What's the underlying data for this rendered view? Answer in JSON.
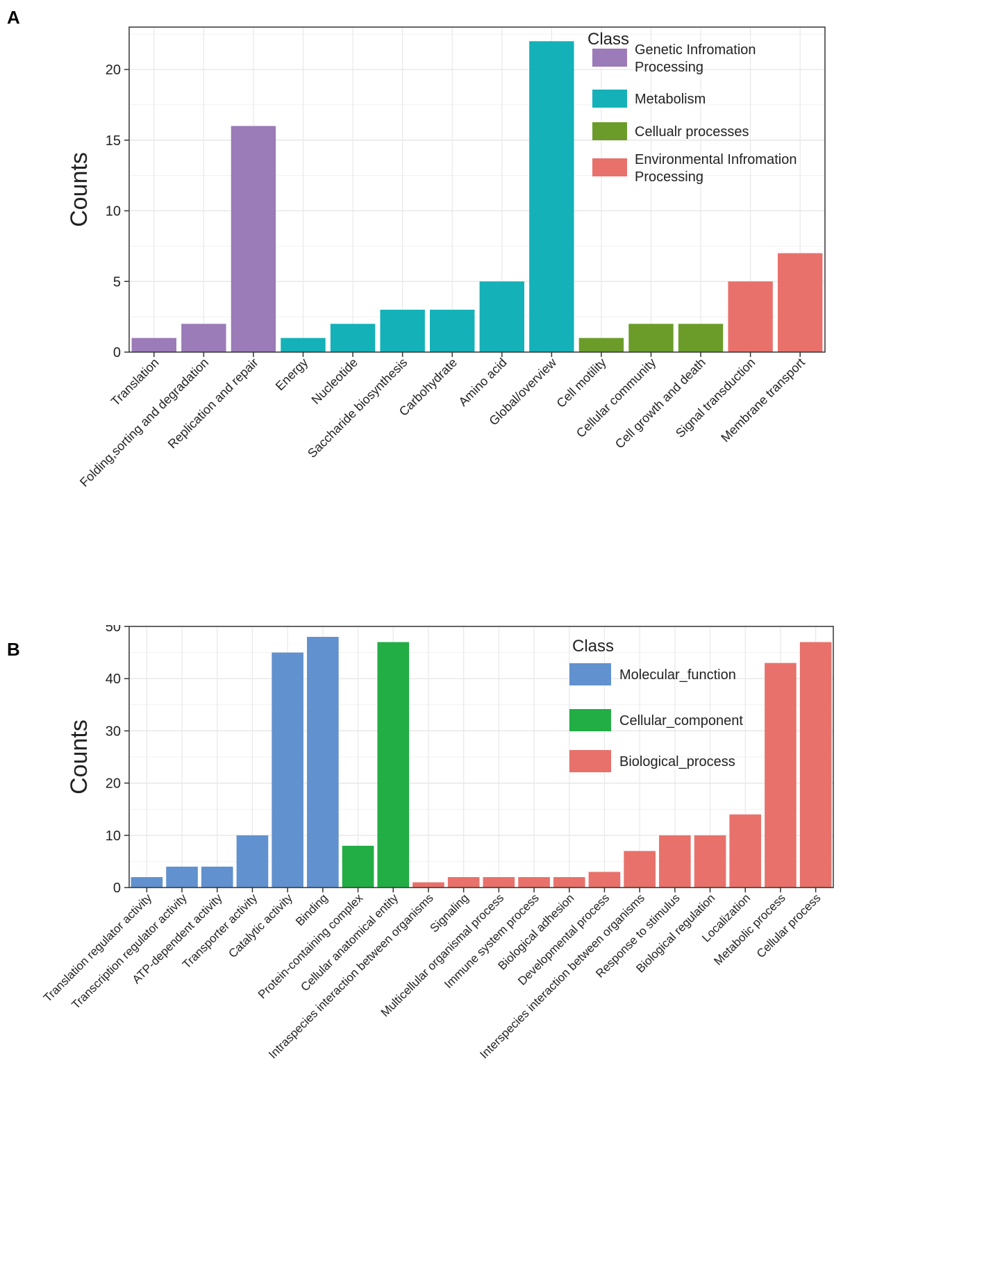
{
  "panels": [
    {
      "label": "A"
    },
    {
      "label": "B"
    }
  ],
  "chart_data": [
    {
      "type": "bar",
      "panel": "A",
      "ylabel": "Counts",
      "xlabel": "",
      "ylim": [
        0,
        23
      ],
      "yticks": [
        0,
        5,
        10,
        15,
        20
      ],
      "grid": true,
      "legend_position": "top-right",
      "legend_title": "Class",
      "classes": [
        {
          "name": "Genetic Infromation Processing",
          "lines": [
            "Genetic Infromation",
            "Processing"
          ],
          "color": "#9B7BB8"
        },
        {
          "name": "Metabolism",
          "lines": [
            "Metabolism"
          ],
          "color": "#14B1B8"
        },
        {
          "name": "Cellualr processes",
          "lines": [
            "Cellualr processes"
          ],
          "color": "#6B9C2A"
        },
        {
          "name": "Environmental Infromation Processing",
          "lines": [
            "Environmental Infromation",
            "Processing"
          ],
          "color": "#E8716B"
        }
      ],
      "categories": [
        "Translation",
        "Folding,sorting and degradation",
        "Replication and repair",
        "Energy",
        "Nucleotide",
        "Saccharide biosynthesis",
        "Carbohydrate",
        "Amino acid",
        "Global/overview",
        "Cell motility",
        "Cellular community",
        "Cell growth and death",
        "Signal transduction",
        "Membrane transport"
      ],
      "values": [
        1,
        2,
        16,
        1,
        2,
        3,
        3,
        5,
        22,
        1,
        2,
        2,
        5,
        7
      ],
      "class_index": [
        0,
        0,
        0,
        1,
        1,
        1,
        1,
        1,
        1,
        2,
        2,
        2,
        3,
        3
      ]
    },
    {
      "type": "bar",
      "panel": "B",
      "ylabel": "Counts",
      "xlabel": "",
      "ylim": [
        0,
        50
      ],
      "yticks": [
        0,
        10,
        20,
        30,
        40,
        50
      ],
      "grid": true,
      "legend_position": "top-right",
      "legend_title": "Class",
      "classes": [
        {
          "name": "Molecular_function",
          "lines": [
            "Molecular_function"
          ],
          "color": "#6191CE"
        },
        {
          "name": "Cellular_component",
          "lines": [
            "Cellular_component"
          ],
          "color": "#23AD45"
        },
        {
          "name": "Biological_process",
          "lines": [
            "Biological_process"
          ],
          "color": "#E8716B"
        }
      ],
      "categories": [
        "Translation regulator activity",
        "Transcription regulator activity",
        "ATP-dependent activity",
        "Transporter activity",
        "Catalytic activity",
        "Binding",
        "Protein-containing complex",
        "Cellular anatomical entity",
        "Intraspecies interaction between organisms",
        "Signaling",
        "Multicellular organismal process",
        "Immune system process",
        "Biological adhesion",
        "Developmental process",
        "Interspecies interaction between organisms",
        "Response to stimulus",
        "Biological regulation",
        "Localization",
        "Metabolic process",
        "Cellular process"
      ],
      "values": [
        2,
        4,
        4,
        10,
        45,
        48,
        8,
        47,
        1,
        2,
        2,
        2,
        2,
        3,
        7,
        10,
        10,
        14,
        43,
        47
      ],
      "class_index": [
        0,
        0,
        0,
        0,
        0,
        0,
        1,
        1,
        2,
        2,
        2,
        2,
        2,
        2,
        2,
        2,
        2,
        2,
        2,
        2
      ]
    }
  ]
}
